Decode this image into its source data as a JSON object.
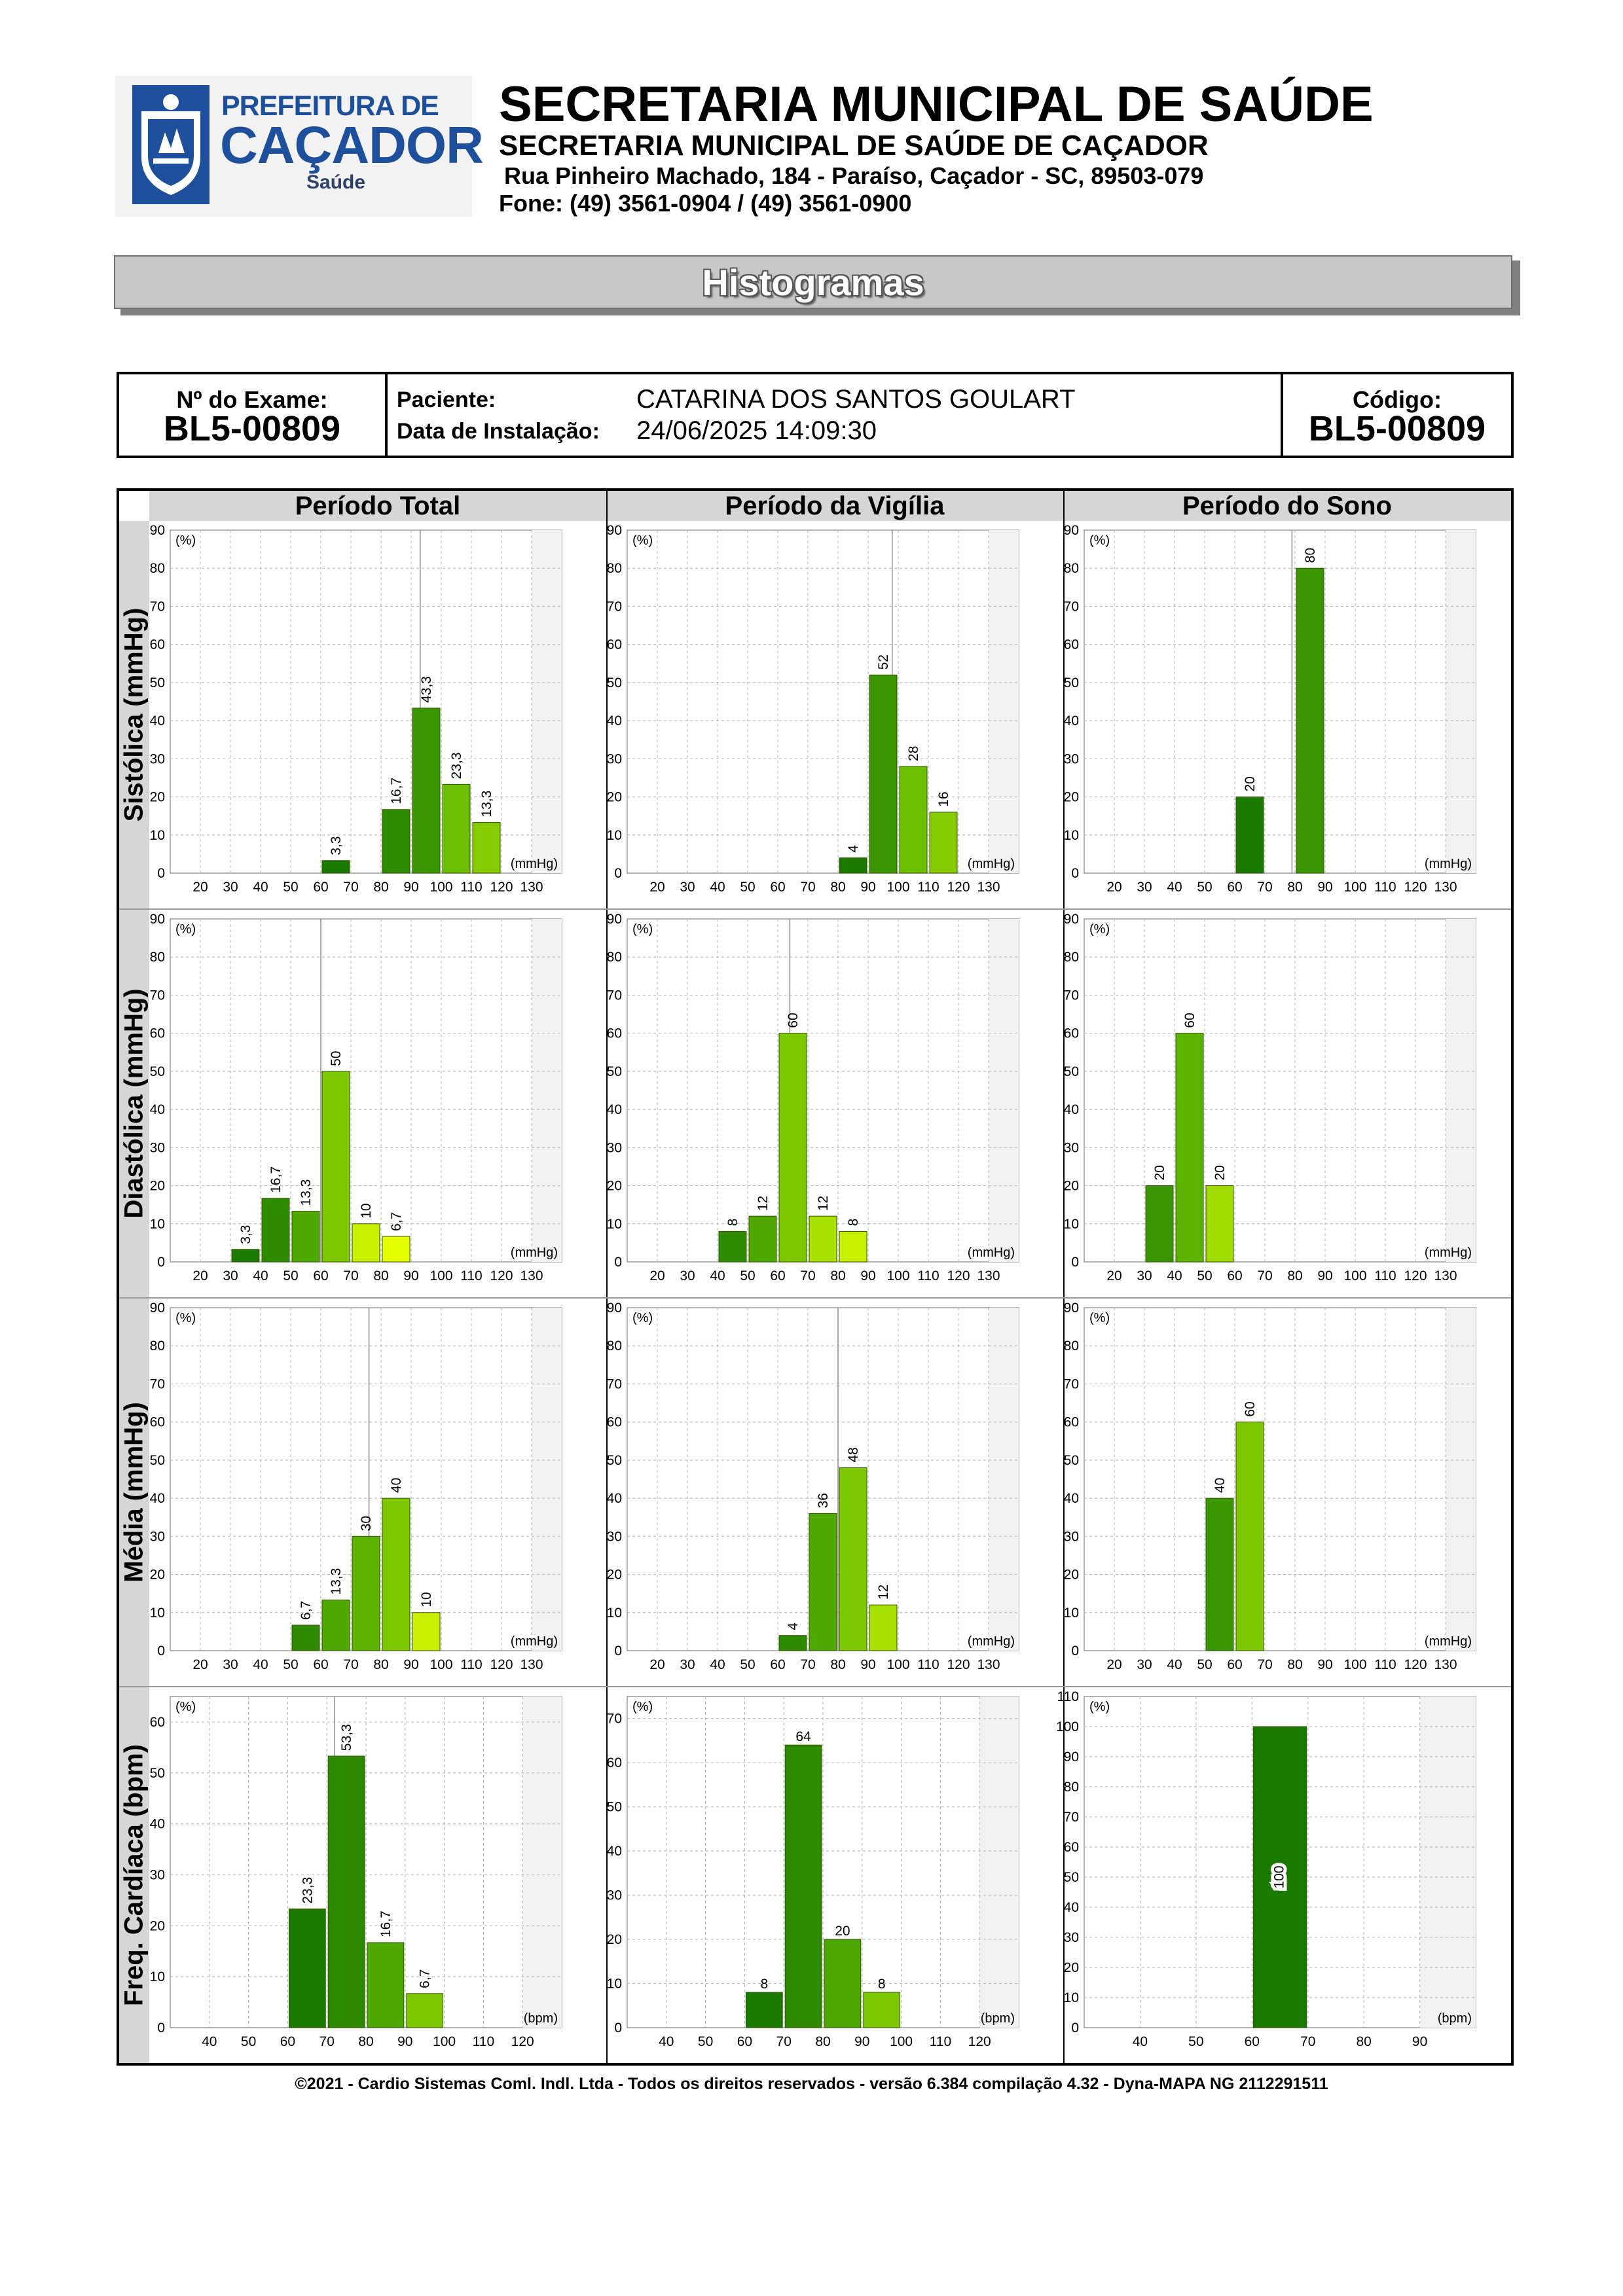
{
  "header": {
    "logo": {
      "line1": "PREFEITURA DE",
      "line2": "CAÇADOR",
      "line3": "Saúde"
    },
    "title": "SECRETARIA MUNICIPAL DE SAÚDE",
    "subtitle": "SECRETARIA MUNICIPAL DE SAÚDE DE CAÇADOR",
    "address": "Rua Pinheiro Machado, 184 - Paraíso, Caçador - SC, 89503-079",
    "phone": "Fone: (49) 3561-0904  / (49) 3561-0900"
  },
  "banner": "Histogramas",
  "exam": {
    "exam_label": "Nº do Exame:",
    "exam_value": "BL5-00809",
    "patient_label": "Paciente:",
    "patient_value": "CATARINA DOS SANTOS GOULART",
    "install_label": "Data de Instalação:",
    "install_value": "24/06/2025 14:09:30",
    "code_label": "Código:",
    "code_value": "BL5-00809"
  },
  "columns": [
    "Período Total",
    "Período da Vigília",
    "Período do Sono"
  ],
  "rows": [
    "Sistólica (mmHg)",
    "Diastólica (mmHg)",
    "Média (mmHg)",
    "Freq. Cardíaca (bpm)"
  ],
  "footer": "©2021 - Cardio Sistemas Coml. Indl. Ltda - Todos os direitos reservados - versão 6.384 compilação 4.32 - Dyna-MAPA NG 2112291511",
  "chart_data": [
    {
      "id": "sis-total",
      "type": "bar",
      "ylabel": "(%)",
      "xlabel": "(mmHg)",
      "ylim": [
        0,
        90
      ],
      "yticks": [
        0,
        10,
        20,
        30,
        40,
        50,
        60,
        70,
        80,
        90
      ],
      "xlim": [
        10,
        140
      ],
      "xticks": [
        20,
        30,
        40,
        50,
        60,
        70,
        80,
        90,
        100,
        110,
        120,
        130
      ],
      "mean": 93,
      "bars": [
        {
          "x": [
            60,
            70
          ],
          "value": 3.3,
          "label": "3,3",
          "color": "#1a7a00"
        },
        {
          "x": [
            80,
            90
          ],
          "value": 16.7,
          "label": "16,7",
          "color": "#2e8b00"
        },
        {
          "x": [
            90,
            100
          ],
          "value": 43.3,
          "label": "43,3",
          "color": "#3a9600"
        },
        {
          "x": [
            100,
            110
          ],
          "value": 23.3,
          "label": "23,3",
          "color": "#6bbf00"
        },
        {
          "x": [
            110,
            120
          ],
          "value": 13.3,
          "label": "13,3",
          "color": "#86cc00"
        }
      ]
    },
    {
      "id": "sis-vig",
      "type": "bar",
      "ylabel": "(%)",
      "xlabel": "(mmHg)",
      "ylim": [
        0,
        90
      ],
      "yticks": [
        0,
        10,
        20,
        30,
        40,
        50,
        60,
        70,
        80,
        90
      ],
      "xlim": [
        10,
        140
      ],
      "xticks": [
        20,
        30,
        40,
        50,
        60,
        70,
        80,
        90,
        100,
        110,
        120,
        130
      ],
      "mean": 98,
      "bars": [
        {
          "x": [
            80,
            90
          ],
          "value": 4,
          "label": "4",
          "color": "#1a7a00"
        },
        {
          "x": [
            90,
            100
          ],
          "value": 52,
          "label": "52",
          "color": "#3a9600"
        },
        {
          "x": [
            100,
            110
          ],
          "value": 28,
          "label": "28",
          "color": "#6bbf00"
        },
        {
          "x": [
            110,
            120
          ],
          "value": 16,
          "label": "16",
          "color": "#86cc00"
        }
      ]
    },
    {
      "id": "sis-sono",
      "type": "bar",
      "ylabel": "(%)",
      "xlabel": "(mmHg)",
      "ylim": [
        0,
        90
      ],
      "yticks": [
        0,
        10,
        20,
        30,
        40,
        50,
        60,
        70,
        80,
        90
      ],
      "xlim": [
        10,
        140
      ],
      "xticks": [
        20,
        30,
        40,
        50,
        60,
        70,
        80,
        90,
        100,
        110,
        120,
        130
      ],
      "mean": 79,
      "bars": [
        {
          "x": [
            60,
            70
          ],
          "value": 20,
          "label": "20",
          "color": "#1a7a00"
        },
        {
          "x": [
            80,
            90
          ],
          "value": 80,
          "label": "80",
          "color": "#3a9600"
        }
      ]
    },
    {
      "id": "dia-total",
      "type": "bar",
      "ylabel": "(%)",
      "xlabel": "(mmHg)",
      "ylim": [
        0,
        90
      ],
      "yticks": [
        0,
        10,
        20,
        30,
        40,
        50,
        60,
        70,
        80,
        90
      ],
      "xlim": [
        10,
        140
      ],
      "xticks": [
        20,
        30,
        40,
        50,
        60,
        70,
        80,
        90,
        100,
        110,
        120,
        130
      ],
      "mean": 60,
      "bars": [
        {
          "x": [
            30,
            40
          ],
          "value": 3.3,
          "label": "3,3",
          "color": "#1a7a00"
        },
        {
          "x": [
            40,
            50
          ],
          "value": 16.7,
          "label": "16,7",
          "color": "#2e8b00"
        },
        {
          "x": [
            50,
            60
          ],
          "value": 13.3,
          "label": "13,3",
          "color": "#4fa800"
        },
        {
          "x": [
            60,
            70
          ],
          "value": 50,
          "label": "50",
          "color": "#7dc800"
        },
        {
          "x": [
            70,
            80
          ],
          "value": 10,
          "label": "10",
          "color": "#c8f000"
        },
        {
          "x": [
            80,
            90
          ],
          "value": 6.7,
          "label": "6,7",
          "color": "#e6ff00"
        }
      ]
    },
    {
      "id": "dia-vig",
      "type": "bar",
      "ylabel": "(%)",
      "xlabel": "(mmHg)",
      "ylim": [
        0,
        90
      ],
      "yticks": [
        0,
        10,
        20,
        30,
        40,
        50,
        60,
        70,
        80,
        90
      ],
      "xlim": [
        10,
        140
      ],
      "xticks": [
        20,
        30,
        40,
        50,
        60,
        70,
        80,
        90,
        100,
        110,
        120,
        130
      ],
      "mean": 64,
      "bars": [
        {
          "x": [
            40,
            50
          ],
          "value": 8,
          "label": "8",
          "color": "#2e8b00"
        },
        {
          "x": [
            50,
            60
          ],
          "value": 12,
          "label": "12",
          "color": "#4fa800"
        },
        {
          "x": [
            60,
            70
          ],
          "value": 60,
          "label": "60",
          "color": "#7dc800"
        },
        {
          "x": [
            70,
            80
          ],
          "value": 12,
          "label": "12",
          "color": "#a8e000"
        },
        {
          "x": [
            80,
            90
          ],
          "value": 8,
          "label": "8",
          "color": "#c8f000"
        }
      ]
    },
    {
      "id": "dia-sono",
      "type": "bar",
      "ylabel": "(%)",
      "xlabel": "(mmHg)",
      "ylim": [
        0,
        90
      ],
      "yticks": [
        0,
        10,
        20,
        30,
        40,
        50,
        60,
        70,
        80,
        90
      ],
      "xlim": [
        10,
        140
      ],
      "xticks": [
        20,
        30,
        40,
        50,
        60,
        70,
        80,
        90,
        100,
        110,
        120,
        130
      ],
      "mean": null,
      "bars": [
        {
          "x": [
            30,
            40
          ],
          "value": 20,
          "label": "20",
          "color": "#3a9600"
        },
        {
          "x": [
            40,
            50
          ],
          "value": 60,
          "label": "60",
          "color": "#5cb300"
        },
        {
          "x": [
            50,
            60
          ],
          "value": 20,
          "label": "20",
          "color": "#a0dc00"
        }
      ]
    },
    {
      "id": "med-total",
      "type": "bar",
      "ylabel": "(%)",
      "xlabel": "(mmHg)",
      "ylim": [
        0,
        90
      ],
      "yticks": [
        0,
        10,
        20,
        30,
        40,
        50,
        60,
        70,
        80,
        90
      ],
      "xlim": [
        10,
        140
      ],
      "xticks": [
        20,
        30,
        40,
        50,
        60,
        70,
        80,
        90,
        100,
        110,
        120,
        130
      ],
      "mean": 76,
      "bars": [
        {
          "x": [
            50,
            60
          ],
          "value": 6.7,
          "label": "6,7",
          "color": "#2e8b00"
        },
        {
          "x": [
            60,
            70
          ],
          "value": 13.3,
          "label": "13,3",
          "color": "#4fa800"
        },
        {
          "x": [
            70,
            80
          ],
          "value": 30,
          "label": "30",
          "color": "#5cb300"
        },
        {
          "x": [
            80,
            90
          ],
          "value": 40,
          "label": "40",
          "color": "#7dc800"
        },
        {
          "x": [
            90,
            100
          ],
          "value": 10,
          "label": "10",
          "color": "#c8f000"
        }
      ]
    },
    {
      "id": "med-vig",
      "type": "bar",
      "ylabel": "(%)",
      "xlabel": "(mmHg)",
      "ylim": [
        0,
        90
      ],
      "yticks": [
        0,
        10,
        20,
        30,
        40,
        50,
        60,
        70,
        80,
        90
      ],
      "xlim": [
        10,
        140
      ],
      "xticks": [
        20,
        30,
        40,
        50,
        60,
        70,
        80,
        90,
        100,
        110,
        120,
        130
      ],
      "mean": 80,
      "bars": [
        {
          "x": [
            60,
            70
          ],
          "value": 4,
          "label": "4",
          "color": "#2e8b00"
        },
        {
          "x": [
            70,
            80
          ],
          "value": 36,
          "label": "36",
          "color": "#4fa800"
        },
        {
          "x": [
            80,
            90
          ],
          "value": 48,
          "label": "48",
          "color": "#7dc800"
        },
        {
          "x": [
            90,
            100
          ],
          "value": 12,
          "label": "12",
          "color": "#a8e000"
        }
      ]
    },
    {
      "id": "med-sono",
      "type": "bar",
      "ylabel": "(%)",
      "xlabel": "(mmHg)",
      "ylim": [
        0,
        90
      ],
      "yticks": [
        0,
        10,
        20,
        30,
        40,
        50,
        60,
        70,
        80,
        90
      ],
      "xlim": [
        10,
        140
      ],
      "xticks": [
        20,
        30,
        40,
        50,
        60,
        70,
        80,
        90,
        100,
        110,
        120,
        130
      ],
      "mean": null,
      "bars": [
        {
          "x": [
            50,
            60
          ],
          "value": 40,
          "label": "40",
          "color": "#3a9600"
        },
        {
          "x": [
            60,
            70
          ],
          "value": 60,
          "label": "60",
          "color": "#7dc800"
        }
      ]
    },
    {
      "id": "fc-total",
      "type": "bar",
      "ylabel": "(%)",
      "xlabel": "(bpm)",
      "ylim": [
        0,
        65
      ],
      "yticks": [
        0,
        10,
        20,
        30,
        40,
        50,
        60
      ],
      "xlim": [
        30,
        130
      ],
      "xticks": [
        40,
        50,
        60,
        70,
        80,
        90,
        100,
        110,
        120
      ],
      "mean": 72,
      "bars": [
        {
          "x": [
            60,
            70
          ],
          "value": 23.3,
          "label": "23,3",
          "color": "#1a7a00"
        },
        {
          "x": [
            70,
            80
          ],
          "value": 53.3,
          "label": "53,3",
          "color": "#2e8b00"
        },
        {
          "x": [
            80,
            90
          ],
          "value": 16.7,
          "label": "16,7",
          "color": "#4fa800"
        },
        {
          "x": [
            90,
            100
          ],
          "value": 6.7,
          "label": "6,7",
          "color": "#7dc800"
        }
      ]
    },
    {
      "id": "fc-vig",
      "type": "bar",
      "ylabel": "(%)",
      "xlabel": "(bpm)",
      "ylim": [
        0,
        75
      ],
      "yticks": [
        0,
        10,
        20,
        30,
        40,
        50,
        60,
        70
      ],
      "xlim": [
        30,
        130
      ],
      "xticks": [
        40,
        50,
        60,
        70,
        80,
        90,
        100,
        110,
        120
      ],
      "mean": null,
      "bars": [
        {
          "x": [
            60,
            70
          ],
          "value": 8,
          "label": "8",
          "color": "#1a7a00"
        },
        {
          "x": [
            70,
            80
          ],
          "value": 64,
          "label": "64",
          "color": "#2e8b00"
        },
        {
          "x": [
            80,
            90
          ],
          "value": 20,
          "label": "20",
          "color": "#4fa800"
        },
        {
          "x": [
            90,
            100
          ],
          "value": 8,
          "label": "8",
          "color": "#7dc800"
        }
      ]
    },
    {
      "id": "fc-sono",
      "type": "bar",
      "ylabel": "(%)",
      "xlabel": "(bpm)",
      "ylim": [
        0,
        110
      ],
      "yticks": [
        0,
        10,
        20,
        30,
        40,
        50,
        60,
        70,
        80,
        90,
        100,
        110
      ],
      "xlim": [
        30,
        100
      ],
      "xticks": [
        40,
        50,
        60,
        70,
        80,
        90
      ],
      "mean": null,
      "bars": [
        {
          "x": [
            60,
            70
          ],
          "value": 100,
          "label": "100",
          "color": "#1a7a00"
        }
      ]
    }
  ]
}
